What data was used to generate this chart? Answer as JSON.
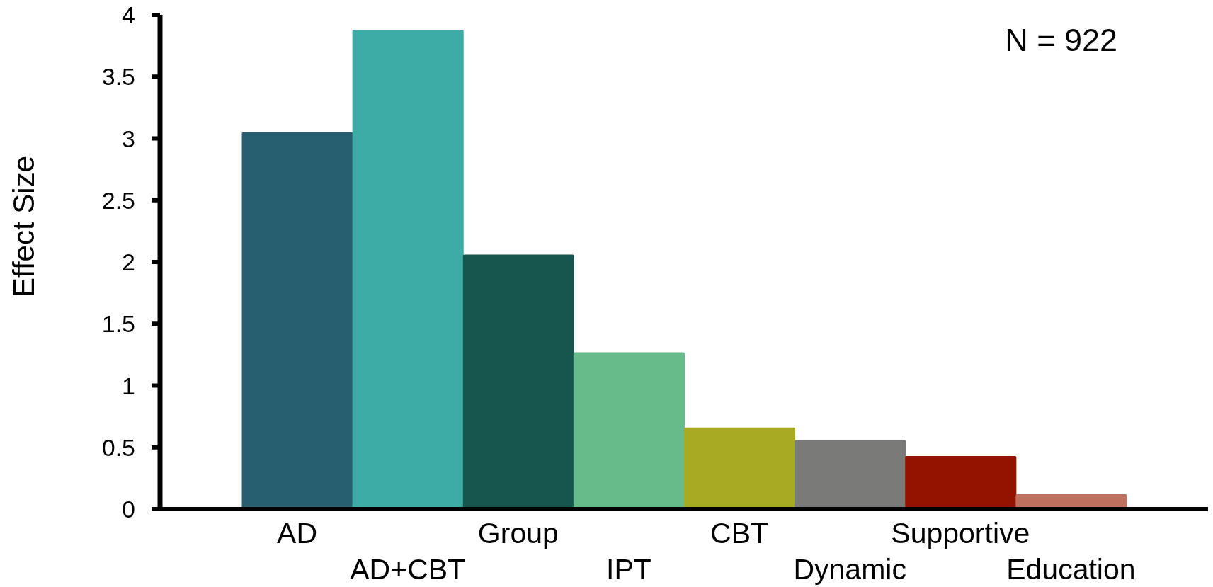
{
  "chart_data": {
    "type": "bar",
    "ylabel": "Effect Size",
    "annotations": [
      "N = 922"
    ],
    "categories": [
      "AD",
      "AD+CBT",
      "Group",
      "IPT",
      "CBT",
      "Dynamic",
      "Supportive",
      "Education"
    ],
    "values": [
      3.05,
      3.88,
      2.06,
      1.27,
      0.66,
      0.56,
      0.43,
      0.12
    ],
    "colors": [
      "#275e70",
      "#3eaca6",
      "#17564e",
      "#67bb8a",
      "#a8aa24",
      "#7a7b78",
      "#941300",
      "#be715e"
    ],
    "ylim": [
      0,
      4
    ],
    "yticks": [
      0,
      0.5,
      1,
      1.5,
      2,
      2.5,
      3,
      3.5,
      4
    ]
  }
}
